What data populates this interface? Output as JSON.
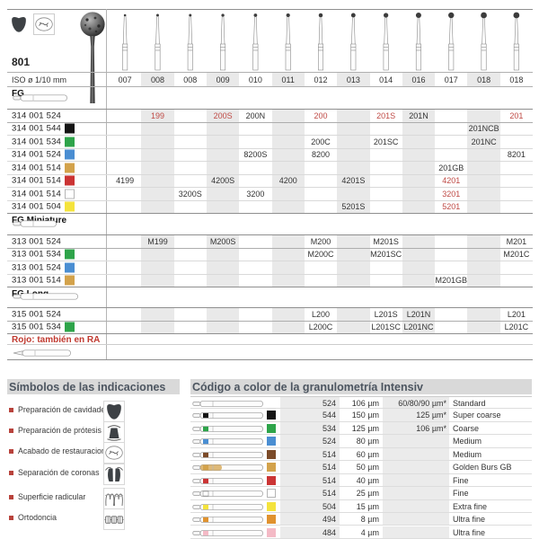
{
  "catalog": {
    "series": "801",
    "iso_label": "ISO ø 1/10 mm",
    "iso_values": [
      "007",
      "008",
      "008",
      "009",
      "010",
      "011",
      "012",
      "013",
      "014",
      "016",
      "017",
      "018",
      "018"
    ],
    "note": "Rojo: también en RA",
    "sections": [
      {
        "name": "FG",
        "rows": [
          {
            "code": "314 001 524",
            "chip": null,
            "cells": [
              {
                "col": 2,
                "v": "199",
                "red": true
              },
              {
                "col": 4,
                "v": "200S",
                "red": true
              },
              {
                "col": 5,
                "v": "200N"
              },
              {
                "col": 7,
                "v": "200",
                "red": true
              },
              {
                "col": 9,
                "v": "201S",
                "red": true
              },
              {
                "col": 10,
                "v": "201N"
              },
              {
                "col": 13,
                "v": "201",
                "red": true
              }
            ]
          },
          {
            "code": "314 001 544",
            "chip": "black",
            "cells": [
              {
                "col": 12,
                "v": "201NCB"
              }
            ]
          },
          {
            "code": "314 001 534",
            "chip": "green",
            "cells": [
              {
                "col": 7,
                "v": "200C"
              },
              {
                "col": 9,
                "v": "201SC"
              },
              {
                "col": 12,
                "v": "201NC"
              }
            ]
          },
          {
            "code": "314 001 524",
            "chip": "blue",
            "cells": [
              {
                "col": 5,
                "v": "8200S"
              },
              {
                "col": 7,
                "v": "8200"
              },
              {
                "col": 13,
                "v": "8201"
              }
            ]
          },
          {
            "code": "314 001 514",
            "chip": "gold",
            "cells": [
              {
                "col": 11,
                "v": "201GB"
              }
            ]
          },
          {
            "code": "314 001 514",
            "chip": "red",
            "cells": [
              {
                "col": 1,
                "v": "4199"
              },
              {
                "col": 4,
                "v": "4200S"
              },
              {
                "col": 6,
                "v": "4200"
              },
              {
                "col": 8,
                "v": "4201S"
              },
              {
                "col": 11,
                "v": "4201",
                "red": true
              }
            ]
          },
          {
            "code": "314 001 514",
            "chip": "white",
            "cells": [
              {
                "col": 3,
                "v": "3200S"
              },
              {
                "col": 5,
                "v": "3200"
              },
              {
                "col": 11,
                "v": "3201",
                "red": true
              }
            ]
          },
          {
            "code": "314 001 504",
            "chip": "yellow",
            "cells": [
              {
                "col": 8,
                "v": "5201S"
              },
              {
                "col": 11,
                "v": "5201",
                "red": true
              }
            ]
          }
        ]
      },
      {
        "name": "FG Miniature",
        "rows": [
          {
            "code": "313 001 524",
            "chip": null,
            "cells": [
              {
                "col": 2,
                "v": "M199"
              },
              {
                "col": 4,
                "v": "M200S"
              },
              {
                "col": 7,
                "v": "M200"
              },
              {
                "col": 9,
                "v": "M201S"
              },
              {
                "col": 13,
                "v": "M201"
              }
            ]
          },
          {
            "code": "313 001 534",
            "chip": "green",
            "cells": [
              {
                "col": 7,
                "v": "M200C"
              },
              {
                "col": 9,
                "v": "M201SC"
              },
              {
                "col": 13,
                "v": "M201C"
              }
            ]
          },
          {
            "code": "313 001 524",
            "chip": "blue",
            "cells": []
          },
          {
            "code": "313 001 514",
            "chip": "gold",
            "cells": [
              {
                "col": 11,
                "v": "M201GB"
              }
            ]
          }
        ]
      },
      {
        "name": "FG Long",
        "rows": [
          {
            "code": "315 001 524",
            "chip": null,
            "cells": [
              {
                "col": 7,
                "v": "L200"
              },
              {
                "col": 9,
                "v": "L201S"
              },
              {
                "col": 10,
                "v": "L201N"
              },
              {
                "col": 13,
                "v": "L201"
              }
            ]
          },
          {
            "code": "315 001 534",
            "chip": "green",
            "cells": [
              {
                "col": 7,
                "v": "L200C"
              },
              {
                "col": 9,
                "v": "L201SC"
              },
              {
                "col": 10,
                "v": "L201NC"
              },
              {
                "col": 13,
                "v": "L201C"
              }
            ]
          }
        ]
      }
    ]
  },
  "symbols": {
    "title": "Símbolos de las indicaciones",
    "items": [
      {
        "label": "Preparación de cavidades",
        "icon": "cavity-prep-icon"
      },
      {
        "label": "Preparación de prótesis",
        "icon": "prosthesis-prep-icon"
      },
      {
        "label": "Acabado de restauraciones",
        "icon": "restoration-finishing-icon"
      },
      {
        "label": "Separación de coronas",
        "icon": "crown-separation-icon"
      },
      {
        "label": "Superficie radicular",
        "icon": "root-surface-icon"
      },
      {
        "label": "Ortodoncia",
        "icon": "orthodontics-icon"
      }
    ]
  },
  "granulometry": {
    "title": "Código a color de la granulometría Intensiv",
    "rows": [
      {
        "chip": null,
        "code": "524",
        "grain": "106 µm",
        "alt": "60/80/90 µm*",
        "name": "Standard"
      },
      {
        "chip": "black",
        "code": "544",
        "grain": "150 µm",
        "alt": "125 µm*",
        "name": "Super coarse"
      },
      {
        "chip": "green",
        "code": "534",
        "grain": "125 µm",
        "alt": "106 µm*",
        "name": "Coarse"
      },
      {
        "chip": "blue",
        "code": "524",
        "grain": "80 µm",
        "alt": "",
        "name": "Medium"
      },
      {
        "chip": "brown",
        "code": "514",
        "grain": "60 µm",
        "alt": "",
        "name": "Medium"
      },
      {
        "chip": "gold",
        "code": "514",
        "grain": "50 µm",
        "alt": "",
        "name": "Golden Burs GB"
      },
      {
        "chip": "red",
        "code": "514",
        "grain": "40 µm",
        "alt": "",
        "name": "Fine"
      },
      {
        "chip": "white",
        "code": "514",
        "grain": "25 µm",
        "alt": "",
        "name": "Fine"
      },
      {
        "chip": "yellow",
        "code": "504",
        "grain": "15 µm",
        "alt": "",
        "name": "Extra fine"
      },
      {
        "chip": "orange",
        "code": "494",
        "grain": "8 µm",
        "alt": "",
        "name": "Ultra fine"
      },
      {
        "chip": "pink",
        "code": "484",
        "grain": "4 µm",
        "alt": "",
        "name": "Ultra fine"
      }
    ]
  },
  "colors": {
    "red_text": "#bf4a45",
    "note_red": "#c0392f",
    "band": "#e9e9e9",
    "heading": "#4c5560",
    "chips": {
      "black": "#141414",
      "green": "#2ea44a",
      "blue": "#4a8ed2",
      "gold": "#d3a24b",
      "red": "#cb3434",
      "white": "#ffffff",
      "yellow": "#f4e33c",
      "brown": "#7b4a28",
      "orange": "#e0922f",
      "pink": "#f4bac6"
    }
  }
}
